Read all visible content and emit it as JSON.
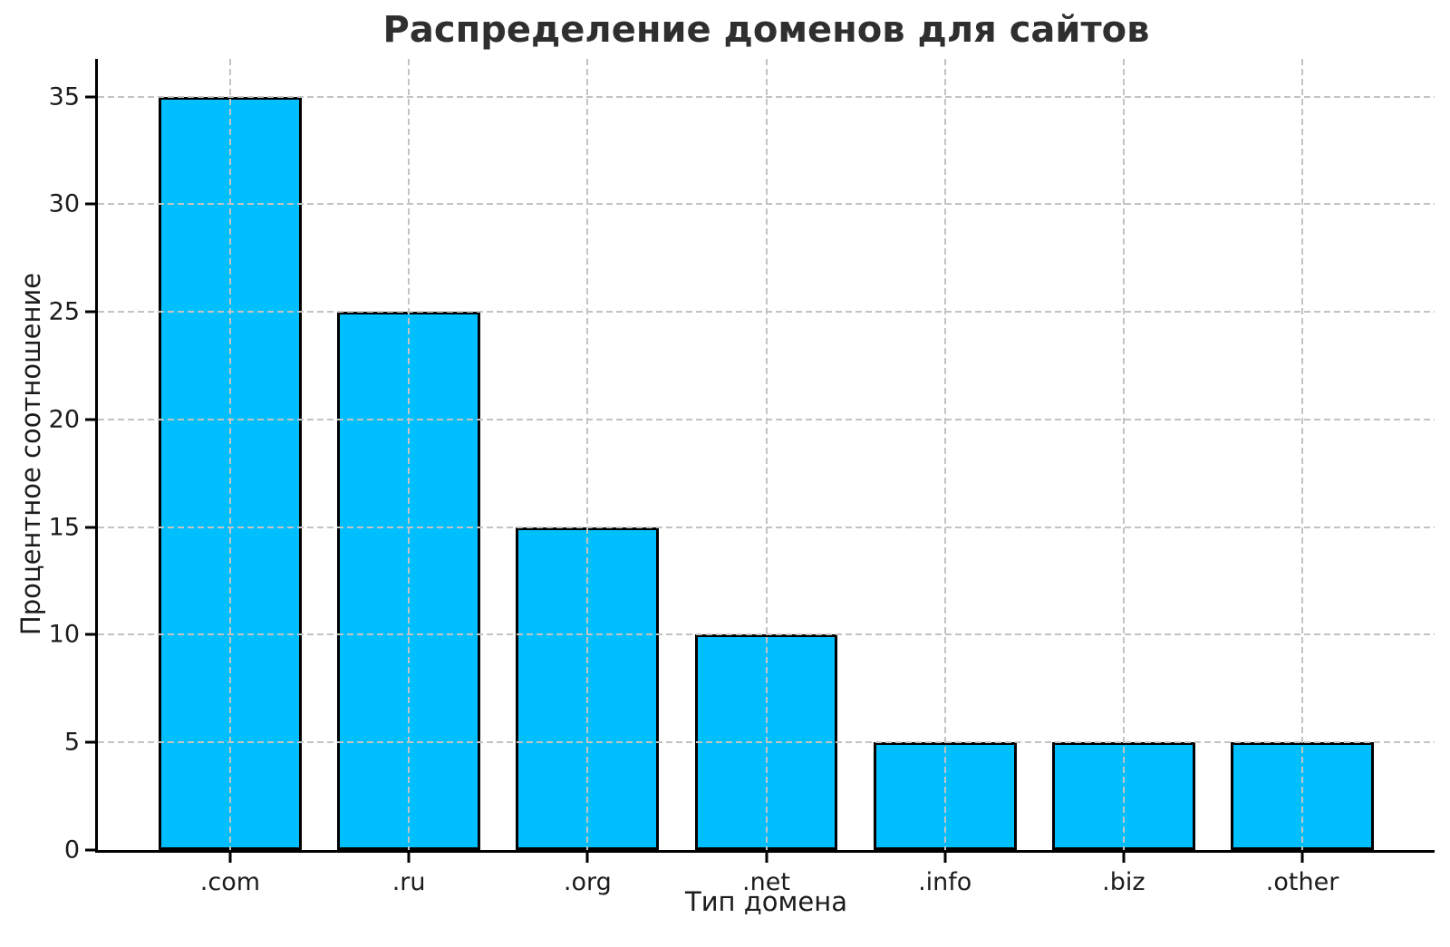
{
  "chart_data": {
    "type": "bar",
    "title": "Распределение доменов для сайтов",
    "xlabel": "Тип домена",
    "ylabel": "Процентное соотношение",
    "categories": [
      ".com",
      ".ru",
      ".org",
      ".net",
      ".info",
      ".biz",
      ".other"
    ],
    "values": [
      35,
      25,
      15,
      10,
      5,
      5,
      5
    ],
    "yticks": [
      0,
      5,
      10,
      15,
      20,
      25,
      30,
      35
    ],
    "ylim": [
      0,
      36.75
    ],
    "xlim": [
      -0.74,
      6.74
    ],
    "bar_width": 0.8,
    "bar_fill_color": "#00bfff",
    "bar_edge_color": "#000000",
    "grid": true,
    "grid_line_style": "dashed",
    "grid_color": "#c3c3c3",
    "grid_above_bars": true,
    "axis_color": "#000000",
    "background_color": "#ffffff",
    "legend_position": "none"
  }
}
